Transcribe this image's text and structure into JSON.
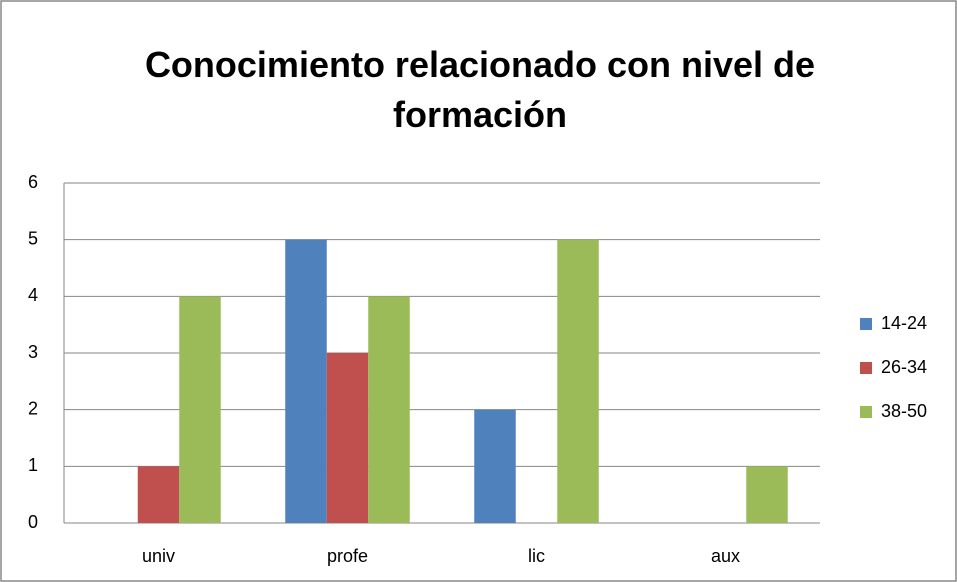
{
  "chart_data": {
    "type": "bar",
    "title": "Conocimiento relacionado con nivel de formación",
    "categories": [
      "univ",
      "profe",
      "lic",
      "aux"
    ],
    "series": [
      {
        "name": "14-24",
        "color": "#4f81bd",
        "values": [
          0,
          5,
          2,
          0
        ]
      },
      {
        "name": "26-34",
        "color": "#c0504d",
        "values": [
          1,
          3,
          0,
          0
        ]
      },
      {
        "name": "38-50",
        "color": "#9bbb59",
        "values": [
          4,
          4,
          5,
          1
        ]
      }
    ],
    "ylim": [
      0,
      6
    ],
    "yticks": [
      0,
      1,
      2,
      3,
      4,
      5,
      6
    ],
    "grid": true,
    "legend": "right"
  }
}
